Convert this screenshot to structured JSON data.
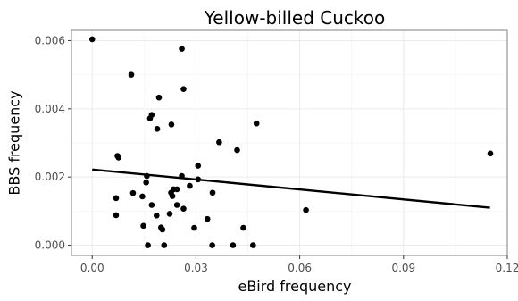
{
  "chart_data": {
    "type": "scatter",
    "title": "Yellow-billed Cuckoo",
    "xlabel": "eBird frequency",
    "ylabel": "BBS frequency",
    "xlim": [
      -0.006,
      0.12
    ],
    "ylim": [
      -0.0003,
      0.0063
    ],
    "xticks": [
      0.0,
      0.03,
      0.06,
      0.09,
      0.12
    ],
    "xtick_labels": [
      "0.00",
      "0.03",
      "0.06",
      "0.09",
      "0.12"
    ],
    "yticks": [
      0.0,
      0.002,
      0.004,
      0.006
    ],
    "ytick_labels": [
      "0.000",
      "0.002",
      "0.004",
      "0.006"
    ],
    "grid": true,
    "points": [
      [
        0.0,
        0.00604
      ],
      [
        0.0113,
        0.005
      ],
      [
        0.0259,
        0.00576
      ],
      [
        0.0193,
        0.00433
      ],
      [
        0.0264,
        0.00458
      ],
      [
        0.0172,
        0.00382
      ],
      [
        0.0167,
        0.00372
      ],
      [
        0.0229,
        0.00354
      ],
      [
        0.0188,
        0.00341
      ],
      [
        0.0475,
        0.00357
      ],
      [
        0.0367,
        0.00302
      ],
      [
        0.0419,
        0.00279
      ],
      [
        0.1151,
        0.00269
      ],
      [
        0.0073,
        0.00262
      ],
      [
        0.0076,
        0.00257
      ],
      [
        0.0306,
        0.00233
      ],
      [
        0.0158,
        0.00203
      ],
      [
        0.0259,
        0.00203
      ],
      [
        0.0156,
        0.00184
      ],
      [
        0.0306,
        0.00193
      ],
      [
        0.0282,
        0.00174
      ],
      [
        0.0118,
        0.00153
      ],
      [
        0.0145,
        0.00143
      ],
      [
        0.0235,
        0.00164
      ],
      [
        0.0245,
        0.00164
      ],
      [
        0.0228,
        0.00154
      ],
      [
        0.0232,
        0.00144
      ],
      [
        0.0348,
        0.00154
      ],
      [
        0.0069,
        0.00138
      ],
      [
        0.0172,
        0.00118
      ],
      [
        0.0245,
        0.00118
      ],
      [
        0.0264,
        0.00107
      ],
      [
        0.0224,
        0.00092
      ],
      [
        0.0186,
        0.00087
      ],
      [
        0.0069,
        0.00088
      ],
      [
        0.0333,
        0.00077
      ],
      [
        0.0618,
        0.00103
      ],
      [
        0.0148,
        0.00057
      ],
      [
        0.0199,
        0.00052
      ],
      [
        0.0203,
        0.00046
      ],
      [
        0.0295,
        0.00051
      ],
      [
        0.0437,
        0.00051
      ],
      [
        0.0161,
        0.0
      ],
      [
        0.0208,
        0.0
      ],
      [
        0.0347,
        0.0
      ],
      [
        0.0407,
        0.0
      ],
      [
        0.0465,
        0.0
      ]
    ],
    "fit_line": {
      "x": [
        0.0,
        0.115
      ],
      "y": [
        0.00222,
        0.0011
      ]
    },
    "colors": {
      "points": "#000000",
      "line": "#000000",
      "grid": "#ebebeb",
      "axes": "#333333",
      "panel_border": "#7f7f7f"
    }
  }
}
